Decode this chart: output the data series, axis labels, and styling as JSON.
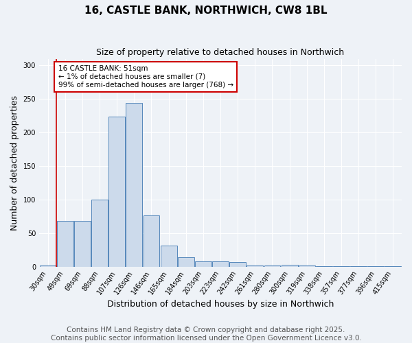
{
  "title": "16, CASTLE BANK, NORTHWICH, CW8 1BL",
  "subtitle": "Size of property relative to detached houses in Northwich",
  "xlabel": "Distribution of detached houses by size in Northwich",
  "ylabel": "Number of detached properties",
  "categories": [
    "30sqm",
    "49sqm",
    "69sqm",
    "88sqm",
    "107sqm",
    "126sqm",
    "146sqm",
    "165sqm",
    "184sqm",
    "203sqm",
    "223sqm",
    "242sqm",
    "261sqm",
    "280sqm",
    "300sqm",
    "319sqm",
    "338sqm",
    "357sqm",
    "377sqm",
    "396sqm",
    "415sqm"
  ],
  "values": [
    2,
    68,
    68,
    100,
    224,
    244,
    76,
    31,
    14,
    8,
    8,
    7,
    2,
    2,
    3,
    2,
    1,
    1,
    1,
    1,
    1
  ],
  "bar_color": "#ccdaeb",
  "bar_edge_color": "#5588bb",
  "red_line_index": 1,
  "annotation_text": "16 CASTLE BANK: 51sqm\n← 1% of detached houses are smaller (7)\n99% of semi-detached houses are larger (768) →",
  "annotation_box_color": "#ffffff",
  "annotation_box_edge_color": "#cc0000",
  "ylim": [
    0,
    310
  ],
  "yticks": [
    0,
    50,
    100,
    150,
    200,
    250,
    300
  ],
  "footer_line1": "Contains HM Land Registry data © Crown copyright and database right 2025.",
  "footer_line2": "Contains public sector information licensed under the Open Government Licence v3.0.",
  "background_color": "#eef2f7",
  "plot_background_color": "#eef2f7",
  "title_fontsize": 11,
  "subtitle_fontsize": 9,
  "ylabel_fontsize": 9,
  "xlabel_fontsize": 9,
  "tick_fontsize": 7,
  "footer_fontsize": 7.5,
  "grid_color": "#ffffff",
  "red_line_color": "#cc0000"
}
